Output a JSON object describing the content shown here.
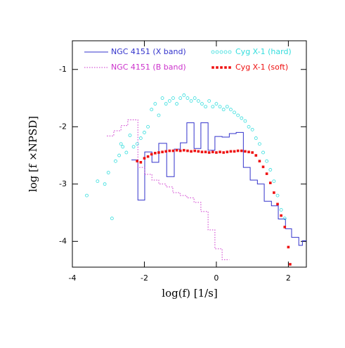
{
  "chart_data": {
    "type": "mixed",
    "xlabel": "log(f)  [1/s]",
    "ylabel": "log [f ×NPSD]",
    "xlim": [
      -4,
      2.5
    ],
    "ylim": [
      -4.45,
      -0.5
    ],
    "xticks": [
      -4,
      -2,
      0,
      2
    ],
    "yticks": [
      -1,
      -2,
      -3,
      -4
    ],
    "series": [
      {
        "name": "NGC 4151 (X band)",
        "color": "#3333cc",
        "style": "step-solid",
        "x": [
          -2.36,
          -2.18,
          -1.99,
          -1.79,
          -1.6,
          -1.38,
          -1.17,
          -1.0,
          -0.82,
          -0.62,
          -0.43,
          -0.23,
          -0.04,
          0.16,
          0.36,
          0.55,
          0.75,
          0.94,
          1.14,
          1.33,
          1.53,
          1.72,
          1.92,
          2.09,
          2.29,
          2.39,
          2.5
        ],
        "values": [
          -2.58,
          -3.28,
          -2.44,
          -2.62,
          -2.29,
          -2.87,
          -2.39,
          -2.28,
          -1.93,
          -2.38,
          -1.93,
          -2.41,
          -2.17,
          -2.18,
          -2.12,
          -2.1,
          -2.71,
          -2.93,
          -3.0,
          -3.3,
          -3.38,
          -3.61,
          -3.78,
          -3.93,
          -4.07,
          -3.99,
          -3.99
        ]
      },
      {
        "name": "NGC 4151 (B band)",
        "color": "#cc33cc",
        "style": "step-dotted",
        "x": [
          -3.04,
          -2.85,
          -2.65,
          -2.46,
          -2.18,
          -1.99,
          -1.79,
          -1.6,
          -1.4,
          -1.21,
          -1.01,
          -0.82,
          -0.62,
          -0.43,
          -0.23,
          -0.04,
          0.16,
          0.36
        ],
        "values": [
          -2.16,
          -2.07,
          -1.98,
          -1.88,
          -2.71,
          -2.83,
          -2.93,
          -3.0,
          -3.05,
          -3.15,
          -3.2,
          -3.24,
          -3.32,
          -3.48,
          -3.8,
          -4.13,
          -4.32,
          -4.32
        ]
      },
      {
        "name": "Cyg X-1 (hard)",
        "color": "#33dddd",
        "style": "circles",
        "x": [
          -3.6,
          -3.3,
          -3.1,
          -3.0,
          -2.9,
          -2.8,
          -2.7,
          -2.65,
          -2.6,
          -2.5,
          -2.4,
          -2.3,
          -2.2,
          -2.1,
          -2.0,
          -1.9,
          -1.8,
          -1.7,
          -1.6,
          -1.5,
          -1.4,
          -1.3,
          -1.2,
          -1.1,
          -1.0,
          -0.9,
          -0.8,
          -0.7,
          -0.6,
          -0.5,
          -0.4,
          -0.3,
          -0.2,
          -0.1,
          0.0,
          0.1,
          0.2,
          0.3,
          0.4,
          0.5,
          0.6,
          0.7,
          0.8,
          0.9,
          1.0,
          1.1,
          1.2,
          1.3,
          1.4,
          1.5,
          1.6,
          1.7,
          1.8,
          1.9
        ],
        "values": [
          -3.2,
          -2.95,
          -3.0,
          -2.8,
          -3.6,
          -2.6,
          -2.5,
          -2.3,
          -2.35,
          -2.45,
          -2.15,
          -2.35,
          -2.3,
          -2.2,
          -2.1,
          -2.0,
          -1.7,
          -1.6,
          -1.8,
          -1.5,
          -1.6,
          -1.55,
          -1.5,
          -1.6,
          -1.5,
          -1.45,
          -1.5,
          -1.55,
          -1.5,
          -1.55,
          -1.6,
          -1.65,
          -1.55,
          -1.65,
          -1.6,
          -1.65,
          -1.7,
          -1.65,
          -1.7,
          -1.75,
          -1.8,
          -1.85,
          -1.9,
          -2.0,
          -2.05,
          -2.2,
          -2.3,
          -2.45,
          -2.6,
          -2.75,
          -2.95,
          -3.2,
          -3.45,
          -3.6
        ]
      },
      {
        "name": "Cyg X-1 (soft)",
        "color": "#ee1111",
        "style": "squares",
        "x": [
          -2.2,
          -2.1,
          -2.0,
          -1.9,
          -1.8,
          -1.7,
          -1.6,
          -1.5,
          -1.4,
          -1.3,
          -1.2,
          -1.1,
          -1.0,
          -0.9,
          -0.8,
          -0.7,
          -0.6,
          -0.5,
          -0.4,
          -0.3,
          -0.2,
          -0.1,
          0.0,
          0.1,
          0.2,
          0.3,
          0.4,
          0.5,
          0.6,
          0.7,
          0.8,
          0.9,
          1.0,
          1.1,
          1.2,
          1.3,
          1.4,
          1.5,
          1.6,
          1.7,
          1.8,
          1.9,
          2.0,
          2.05
        ],
        "values": [
          -2.6,
          -2.62,
          -2.55,
          -2.52,
          -2.48,
          -2.46,
          -2.45,
          -2.44,
          -2.43,
          -2.42,
          -2.42,
          -2.41,
          -2.42,
          -2.41,
          -2.42,
          -2.43,
          -2.42,
          -2.43,
          -2.44,
          -2.44,
          -2.45,
          -2.44,
          -2.45,
          -2.44,
          -2.45,
          -2.44,
          -2.43,
          -2.43,
          -2.42,
          -2.42,
          -2.43,
          -2.44,
          -2.45,
          -2.5,
          -2.6,
          -2.7,
          -2.82,
          -2.98,
          -3.15,
          -3.35,
          -3.55,
          -3.75,
          -4.1,
          -4.4
        ]
      }
    ]
  }
}
